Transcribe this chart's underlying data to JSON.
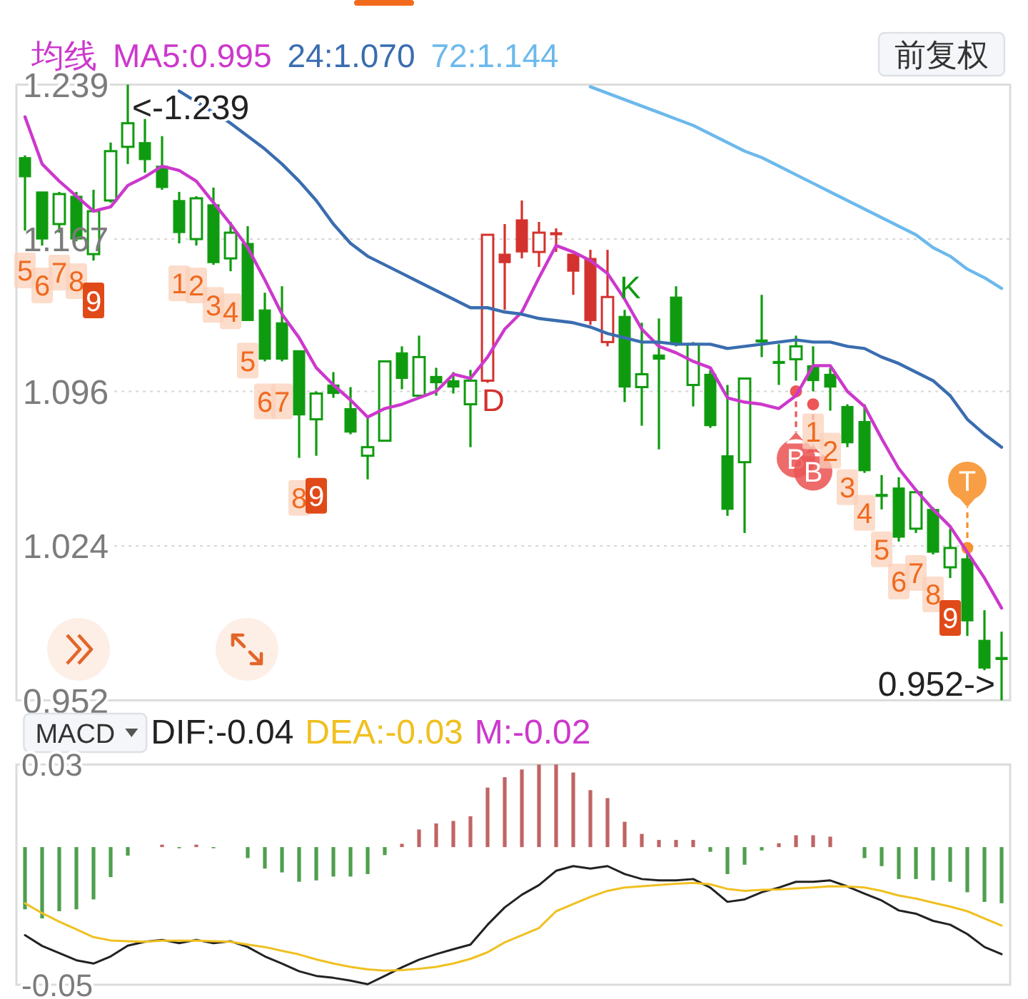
{
  "chart_data": [
    {
      "type": "candlestick",
      "categories": [
        null,
        null,
        null,
        null,
        null,
        null,
        null,
        null,
        null,
        null,
        null,
        null,
        null,
        null,
        null,
        null,
        null,
        null,
        null,
        null,
        null,
        null,
        null,
        null,
        null,
        null,
        null,
        null,
        null,
        null,
        null,
        null,
        null,
        null,
        null,
        null,
        null,
        null,
        null,
        null,
        null,
        null,
        null,
        null,
        null,
        null,
        null,
        null,
        null,
        null,
        null,
        null,
        null,
        null,
        null,
        null,
        null,
        null
      ],
      "ohlc": [
        [
          1.205,
          1.206,
          1.171,
          1.196
        ],
        [
          1.189,
          1.189,
          1.164,
          1.167
        ],
        [
          1.174,
          1.189,
          1.17,
          1.188
        ],
        [
          1.187,
          1.189,
          1.166,
          1.167
        ],
        [
          1.16,
          1.19,
          1.157,
          1.18
        ],
        [
          1.185,
          1.212,
          1.184,
          1.208
        ],
        [
          1.21,
          1.239,
          1.202,
          1.221
        ],
        [
          1.212,
          1.223,
          1.198,
          1.204
        ],
        [
          1.201,
          1.215,
          1.19,
          1.191
        ],
        [
          1.185,
          1.189,
          1.165,
          1.17
        ],
        [
          1.167,
          1.187,
          1.164,
          1.186
        ],
        [
          1.183,
          1.191,
          1.155,
          1.156
        ],
        [
          1.158,
          1.175,
          1.152,
          1.17
        ],
        [
          1.165,
          1.173,
          1.129,
          1.129
        ],
        [
          1.134,
          1.142,
          1.11,
          1.111
        ],
        [
          1.128,
          1.145,
          1.11,
          1.111
        ],
        [
          1.115,
          1.115,
          1.065,
          1.085
        ],
        [
          1.083,
          1.096,
          1.066,
          1.095
        ],
        [
          1.099,
          1.105,
          1.093,
          1.095
        ],
        [
          1.088,
          1.098,
          1.076,
          1.077
        ],
        [
          1.066,
          1.084,
          1.055,
          1.07
        ],
        [
          1.073,
          1.11,
          1.073,
          1.11
        ],
        [
          1.114,
          1.117,
          1.097,
          1.102
        ],
        [
          1.094,
          1.122,
          1.094,
          1.112
        ],
        [
          1.103,
          1.107,
          1.094,
          1.1
        ],
        [
          1.101,
          1.105,
          1.095,
          1.098
        ],
        [
          1.09,
          1.106,
          1.07,
          1.101
        ],
        [
          1.101,
          1.169,
          1.1,
          1.169
        ],
        [
          1.16,
          1.174,
          1.134,
          1.156
        ],
        [
          1.176,
          1.185,
          1.158,
          1.161
        ],
        [
          1.161,
          1.175,
          1.154,
          1.17
        ],
        [
          1.17,
          1.172,
          1.161,
          1.169
        ],
        [
          1.16,
          1.16,
          1.141,
          1.152
        ],
        [
          1.158,
          1.162,
          1.127,
          1.129
        ],
        [
          1.119,
          1.162,
          1.117,
          1.14
        ],
        [
          1.131,
          1.134,
          1.091,
          1.098
        ],
        [
          1.098,
          1.128,
          1.08,
          1.104
        ],
        [
          1.113,
          1.13,
          1.069,
          1.111
        ],
        [
          1.14,
          1.145,
          1.117,
          1.118
        ],
        [
          1.099,
          1.119,
          1.089,
          1.118
        ],
        [
          1.104,
          1.106,
          1.079,
          1.08
        ],
        [
          1.066,
          1.099,
          1.038,
          1.041
        ],
        [
          1.063,
          1.102,
          1.03,
          1.102
        ],
        [
          1.12,
          1.141,
          1.112,
          1.119
        ],
        [
          1.11,
          1.118,
          1.099,
          1.109
        ],
        [
          1.111,
          1.122,
          1.101,
          1.117
        ],
        [
          1.108,
          1.117,
          1.096,
          1.101
        ],
        [
          1.104,
          1.107,
          1.087,
          1.098
        ],
        [
          1.089,
          1.09,
          1.07,
          1.072
        ],
        [
          1.082,
          1.09,
          1.058,
          1.059
        ],
        [
          1.048,
          1.057,
          1.041,
          1.047
        ],
        [
          1.051,
          1.056,
          1.026,
          1.028
        ],
        [
          1.032,
          1.05,
          1.03,
          1.049
        ],
        [
          1.041,
          1.042,
          1.02,
          1.021
        ],
        [
          1.014,
          1.032,
          1.009,
          1.023
        ],
        [
          1.018,
          1.021,
          0.982,
          0.989
        ],
        [
          0.98,
          0.994,
          0.966,
          0.967
        ],
        [
          0.972,
          0.984,
          0.952,
          0.971
        ]
      ],
      "colors": [
        "#0f9b0f",
        "#0f9b0f",
        "#0f9b0f",
        "#0f9b0f",
        "#0f9b0f",
        "#0f9b0f",
        "#0f9b0f",
        "#0f9b0f",
        "#0f9b0f",
        "#0f9b0f",
        "#0f9b0f",
        "#0f9b0f",
        "#0f9b0f",
        "#0f9b0f",
        "#0f9b0f",
        "#0f9b0f",
        "#0f9b0f",
        "#0f9b0f",
        "#0f9b0f",
        "#0f9b0f",
        "#0f9b0f",
        "#0f9b0f",
        "#0f9b0f",
        "#0f9b0f",
        "#0f9b0f",
        "#0f9b0f",
        "#0f9b0f",
        "#d3322e",
        "#d3322e",
        "#d3322e",
        "#d3322e",
        "#d3322e",
        "#d3322e",
        "#d3322e",
        "#d3322e",
        "#0f9b0f",
        "#0f9b0f",
        "#0f9b0f",
        "#0f9b0f",
        "#0f9b0f",
        "#0f9b0f",
        "#0f9b0f",
        "#0f9b0f",
        "#0f9b0f",
        "#0f9b0f",
        "#0f9b0f",
        "#0f9b0f",
        "#0f9b0f",
        "#0f9b0f",
        "#0f9b0f",
        "#0f9b0f",
        "#0f9b0f",
        "#0f9b0f",
        "#0f9b0f",
        "#0f9b0f",
        "#0f9b0f",
        "#0f9b0f",
        "#0f9b0f"
      ],
      "value_labels": [
        "5",
        "6",
        "7",
        "8",
        "9",
        null,
        null,
        null,
        null,
        "1",
        "2",
        "3",
        "4",
        "5",
        "6",
        "7",
        "8",
        "9",
        null,
        null,
        null,
        null,
        null,
        null,
        null,
        null,
        null,
        "D",
        null,
        null,
        null,
        null,
        null,
        null,
        null,
        "K",
        null,
        null,
        null,
        null,
        null,
        null,
        null,
        null,
        null,
        null,
        "1",
        "2",
        "3",
        "4",
        "5",
        "6",
        "7",
        "8",
        "9",
        null,
        null,
        null
      ],
      "series": [
        {
          "type": "line",
          "name": "MA5:0.995",
          "color": "#cc38cc",
          "values": [
            1.224,
            1.202,
            1.194,
            1.187,
            1.18,
            1.182,
            1.192,
            1.196,
            1.201,
            1.199,
            1.194,
            1.184,
            1.174,
            1.163,
            1.148,
            1.132,
            1.121,
            1.107,
            1.099,
            1.092,
            1.084,
            1.088,
            1.09,
            1.093,
            1.096,
            1.104,
            1.102,
            1.112,
            1.125,
            1.133,
            1.149,
            1.164,
            1.161,
            1.157,
            1.151,
            1.139,
            1.125,
            1.117,
            1.114,
            1.11,
            1.107,
            1.093,
            1.091,
            1.09,
            1.088,
            1.094,
            1.108,
            1.108,
            1.096,
            1.089,
            1.074,
            1.06,
            1.05,
            1.041,
            1.033,
            1.021,
            1.009,
            0.995
          ]
        },
        {
          "type": "line",
          "name": "24:1.070",
          "color": "#3a6db0",
          "values": [
            null,
            null,
            null,
            null,
            null,
            null,
            null,
            null,
            null,
            1.236,
            1.231,
            1.226,
            1.221,
            1.215,
            1.209,
            1.202,
            1.194,
            1.185,
            1.174,
            1.165,
            1.159,
            1.155,
            1.151,
            1.147,
            1.143,
            1.139,
            1.135,
            1.135,
            1.133,
            1.132,
            1.13,
            1.129,
            1.128,
            1.126,
            1.123,
            1.121,
            1.119,
            1.119,
            1.118,
            1.118,
            1.118,
            1.116,
            1.117,
            1.118,
            1.119,
            1.12,
            1.119,
            1.119,
            1.117,
            1.116,
            1.112,
            1.109,
            1.105,
            1.101,
            1.094,
            1.083,
            1.076,
            1.07
          ]
        },
        {
          "type": "line",
          "name": "72:1.144",
          "color": "#6cb9ec",
          "values": [
            null,
            null,
            null,
            null,
            null,
            null,
            null,
            null,
            null,
            null,
            null,
            null,
            null,
            null,
            null,
            null,
            null,
            null,
            null,
            null,
            null,
            null,
            null,
            null,
            null,
            null,
            null,
            null,
            null,
            null,
            null,
            null,
            null,
            1.238,
            1.235,
            1.232,
            1.229,
            1.226,
            1.223,
            1.22,
            1.216,
            1.212,
            1.208,
            1.205,
            1.201,
            1.197,
            1.193,
            1.189,
            1.185,
            1.181,
            1.177,
            1.173,
            1.169,
            1.163,
            1.159,
            1.153,
            1.149,
            1.144
          ]
        },
        {
          "type": "scatter",
          "marker": "circle",
          "color": "#ec5656",
          "values": [
            null,
            null,
            null,
            null,
            null,
            null,
            null,
            null,
            null,
            null,
            null,
            null,
            null,
            null,
            null,
            null,
            null,
            null,
            null,
            null,
            null,
            null,
            null,
            null,
            null,
            null,
            null,
            null,
            null,
            null,
            null,
            null,
            null,
            null,
            null,
            null,
            null,
            null,
            null,
            null,
            null,
            null,
            null,
            null,
            null,
            1.096,
            1.09,
            null,
            null,
            null,
            null,
            null,
            null,
            null,
            null,
            null,
            null,
            null
          ],
          "value_labels": [
            null,
            null,
            null,
            null,
            null,
            null,
            null,
            null,
            null,
            null,
            null,
            null,
            null,
            null,
            null,
            null,
            null,
            null,
            null,
            null,
            null,
            null,
            null,
            null,
            null,
            null,
            null,
            null,
            null,
            null,
            null,
            null,
            null,
            null,
            null,
            null,
            null,
            null,
            null,
            null,
            null,
            null,
            null,
            null,
            null,
            "B",
            "B",
            null,
            null,
            null,
            null,
            null,
            null,
            null,
            null,
            null,
            null,
            null
          ]
        },
        {
          "type": "scatter",
          "marker": "circle",
          "color": "#f7922b",
          "values": [
            null,
            null,
            null,
            null,
            null,
            null,
            null,
            null,
            null,
            null,
            null,
            null,
            null,
            null,
            null,
            null,
            null,
            null,
            null,
            null,
            null,
            null,
            null,
            null,
            null,
            null,
            null,
            null,
            null,
            null,
            null,
            null,
            null,
            null,
            null,
            null,
            null,
            null,
            null,
            null,
            null,
            null,
            null,
            null,
            null,
            null,
            null,
            null,
            null,
            null,
            null,
            null,
            null,
            null,
            null,
            1.023,
            null,
            null
          ],
          "value_labels": [
            null,
            null,
            null,
            null,
            null,
            null,
            null,
            null,
            null,
            null,
            null,
            null,
            null,
            null,
            null,
            null,
            null,
            null,
            null,
            null,
            null,
            null,
            null,
            null,
            null,
            null,
            null,
            null,
            null,
            null,
            null,
            null,
            null,
            null,
            null,
            null,
            null,
            null,
            null,
            null,
            null,
            null,
            null,
            null,
            null,
            null,
            null,
            null,
            null,
            null,
            null,
            null,
            null,
            null,
            null,
            "T",
            null,
            null
          ]
        }
      ],
      "ylim": [
        0.952,
        1.239
      ],
      "yticks": [
        0.952,
        1.024,
        1.096,
        1.167,
        1.239
      ],
      "grid": "y",
      "tick_labels": "y",
      "legend": "top left",
      "legend_title": "均线",
      "annotations": [
        "<-1.239",
        "0.952->",
        "前复权"
      ]
    },
    {
      "type": "bar",
      "title": "MACD",
      "categories": [
        null,
        null,
        null,
        null,
        null,
        null,
        null,
        null,
        null,
        null,
        null,
        null,
        null,
        null,
        null,
        null,
        null,
        null,
        null,
        null,
        null,
        null,
        null,
        null,
        null,
        null,
        null,
        null,
        null,
        null,
        null,
        null,
        null,
        null,
        null,
        null,
        null,
        null,
        null,
        null,
        null,
        null,
        null,
        null,
        null,
        null,
        null,
        null,
        null,
        null,
        null,
        null,
        null,
        null,
        null,
        null,
        null,
        null
      ],
      "series": [
        {
          "type": "line",
          "name": "DIF:-0.04",
          "color": "#222222",
          "values": [
            -0.032,
            -0.0359,
            -0.0385,
            -0.0411,
            -0.0423,
            -0.0397,
            -0.0358,
            -0.0344,
            -0.0337,
            -0.0349,
            -0.0337,
            -0.0349,
            -0.0342,
            -0.0363,
            -0.0397,
            -0.0423,
            -0.0451,
            -0.0468,
            -0.0475,
            -0.0485,
            -0.0498,
            -0.0468,
            -0.0437,
            -0.0409,
            -0.0389,
            -0.0371,
            -0.0354,
            -0.0282,
            -0.0219,
            -0.0173,
            -0.0138,
            -0.0086,
            -0.0069,
            -0.0078,
            -0.0069,
            -0.0098,
            -0.0116,
            -0.0121,
            -0.0121,
            -0.0116,
            -0.0147,
            -0.0199,
            -0.019,
            -0.0164,
            -0.0147,
            -0.0126,
            -0.0126,
            -0.0121,
            -0.0143,
            -0.0169,
            -0.0194,
            -0.023,
            -0.0242,
            -0.0268,
            -0.0282,
            -0.0316,
            -0.0363,
            -0.0389
          ]
        },
        {
          "type": "line",
          "name": "DEA:-0.03",
          "color": "#f0c020",
          "values": [
            -0.0204,
            -0.024,
            -0.0271,
            -0.0299,
            -0.0327,
            -0.0339,
            -0.0342,
            -0.0344,
            -0.034,
            -0.034,
            -0.034,
            -0.0342,
            -0.0344,
            -0.0354,
            -0.0363,
            -0.0377,
            -0.039,
            -0.0408,
            -0.0423,
            -0.0435,
            -0.0444,
            -0.0449,
            -0.0447,
            -0.0442,
            -0.0435,
            -0.0423,
            -0.0406,
            -0.0382,
            -0.0346,
            -0.032,
            -0.0294,
            -0.0233,
            -0.0207,
            -0.0181,
            -0.0159,
            -0.0147,
            -0.0142,
            -0.0138,
            -0.0133,
            -0.013,
            -0.0135,
            -0.0152,
            -0.0159,
            -0.0155,
            -0.0154,
            -0.015,
            -0.0147,
            -0.0142,
            -0.0143,
            -0.0147,
            -0.0159,
            -0.0176,
            -0.0187,
            -0.0202,
            -0.0216,
            -0.0233,
            -0.0259,
            -0.0285
          ]
        },
        {
          "name": "M:-0.02",
          "color": "#cc38cc",
          "values": [
            -0.0226,
            -0.0259,
            -0.0233,
            -0.0226,
            -0.019,
            -0.0109,
            -0.0031,
            null,
            0.0009,
            -0.0003,
            0.0009,
            -0.0003,
            null,
            -0.004,
            -0.0078,
            -0.0092,
            -0.0126,
            -0.0121,
            -0.0107,
            -0.0107,
            -0.0098,
            -0.0029,
            0.0012,
            0.0064,
            0.0086,
            0.0095,
            0.0112,
            0.0216,
            0.0254,
            0.0282,
            0.03,
            0.03,
            0.0271,
            0.0207,
            0.0178,
            0.0092,
            0.0048,
            0.0026,
            0.0026,
            0.0026,
            -0.0017,
            -0.0098,
            -0.0064,
            -0.0012,
            0.0014,
            0.0043,
            0.0043,
            0.0038,
            null,
            -0.004,
            -0.0069,
            -0.0116,
            -0.0116,
            -0.0121,
            -0.0126,
            -0.0164,
            -0.0199,
            -0.0204
          ],
          "colors": [
            "#4f9f4f",
            "#4f9f4f",
            "#4f9f4f",
            "#4f9f4f",
            "#4f9f4f",
            "#4f9f4f",
            "#4f9f4f",
            null,
            "#c06464",
            "#4f9f4f",
            "#c06464",
            "#4f9f4f",
            null,
            "#4f9f4f",
            "#4f9f4f",
            "#4f9f4f",
            "#4f9f4f",
            "#4f9f4f",
            "#4f9f4f",
            "#4f9f4f",
            "#4f9f4f",
            "#4f9f4f",
            "#c06464",
            "#c06464",
            "#c06464",
            "#c06464",
            "#c06464",
            "#c06464",
            "#c06464",
            "#c06464",
            "#c06464",
            "#c06464",
            "#c06464",
            "#c06464",
            "#c06464",
            "#c06464",
            "#c06464",
            "#c06464",
            "#c06464",
            "#c06464",
            "#4f9f4f",
            "#4f9f4f",
            "#4f9f4f",
            "#4f9f4f",
            "#c06464",
            "#c06464",
            "#c06464",
            "#c06464",
            null,
            "#4f9f4f",
            "#4f9f4f",
            "#4f9f4f",
            "#4f9f4f",
            "#4f9f4f",
            "#4f9f4f",
            "#4f9f4f",
            "#4f9f4f",
            "#4f9f4f"
          ]
        }
      ],
      "ylim": [
        -0.05,
        0.03
      ],
      "yticks": [
        -0.05,
        0.03
      ],
      "tick_labels": "y",
      "legend": "top left"
    }
  ]
}
